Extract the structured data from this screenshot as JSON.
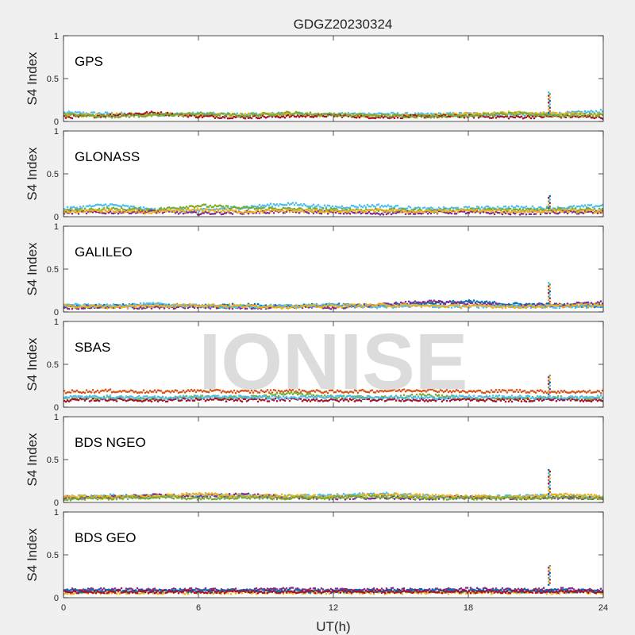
{
  "figure": {
    "title": "GDGZ20230324",
    "watermark": "IONISE"
  },
  "chart_data": {
    "type": "scatter",
    "title": "GDGZ20230324",
    "xlabel": "UT(h)",
    "ylabel": "S4 Index",
    "xlim": [
      0,
      24
    ],
    "ylim": [
      0,
      1
    ],
    "xticks": [
      "0",
      "6",
      "12",
      "18",
      "24"
    ],
    "yticks": [
      "0",
      "0.5",
      "1"
    ],
    "grid": false,
    "colors": [
      "#0072BD",
      "#D95319",
      "#EDB120",
      "#7E2F8E",
      "#77AC30",
      "#4DBEEE",
      "#A2142F"
    ],
    "panels": [
      {
        "name": "GPS",
        "series": [
          {
            "color": "#4DBEEE",
            "x": [
              0,
              2,
              4,
              6,
              8,
              10,
              12,
              14,
              16,
              18,
              20,
              22,
              24
            ],
            "y": [
              0.1,
              0.09,
              0.08,
              0.09,
              0.08,
              0.09,
              0.08,
              0.09,
              0.08,
              0.09,
              0.08,
              0.09,
              0.12
            ]
          },
          {
            "color": "#EDB120",
            "x": [
              0,
              2,
              4,
              6,
              8,
              10,
              12,
              14,
              16,
              18,
              20,
              22,
              24
            ],
            "y": [
              0.07,
              0.08,
              0.09,
              0.07,
              0.08,
              0.08,
              0.07,
              0.06,
              0.07,
              0.08,
              0.1,
              0.09,
              0.08
            ]
          },
          {
            "color": "#A2142F",
            "x": [
              0,
              2,
              4,
              6,
              8,
              10,
              12,
              14,
              16,
              18,
              20,
              22,
              24
            ],
            "y": [
              0.05,
              0.07,
              0.1,
              0.06,
              0.05,
              0.06,
              0.07,
              0.05,
              0.06,
              0.06,
              0.05,
              0.06,
              0.05
            ]
          },
          {
            "color": "#77AC30",
            "x": [
              0,
              2,
              4,
              6,
              8,
              10,
              12,
              14,
              16,
              18,
              20,
              22,
              24
            ],
            "y": [
              0.08,
              0.06,
              0.07,
              0.09,
              0.07,
              0.1,
              0.08,
              0.07,
              0.06,
              0.07,
              0.09,
              0.07,
              0.08
            ]
          }
        ],
        "spike": {
          "x": 21.6,
          "y": [
            0.1,
            0.35
          ]
        }
      },
      {
        "name": "GLONASS",
        "series": [
          {
            "color": "#4DBEEE",
            "x": [
              0,
              2,
              4,
              6,
              8,
              10,
              12,
              14,
              16,
              18,
              20,
              22,
              24
            ],
            "y": [
              0.09,
              0.14,
              0.08,
              0.07,
              0.11,
              0.15,
              0.11,
              0.13,
              0.09,
              0.1,
              0.11,
              0.1,
              0.13
            ]
          },
          {
            "color": "#77AC30",
            "x": [
              0,
              2,
              4,
              6,
              8,
              10,
              12,
              14,
              16,
              18,
              20,
              22,
              24
            ],
            "y": [
              0.07,
              0.09,
              0.08,
              0.13,
              0.1,
              0.09,
              0.08,
              0.08,
              0.07,
              0.08,
              0.08,
              0.09,
              0.08
            ]
          },
          {
            "color": "#7E2F8E",
            "x": [
              0,
              2,
              4,
              6,
              8,
              10,
              12,
              14,
              16,
              18,
              20,
              22,
              24
            ],
            "y": [
              0.05,
              0.05,
              0.06,
              0.04,
              0.05,
              0.06,
              0.05,
              0.04,
              0.05,
              0.05,
              0.04,
              0.05,
              0.05
            ]
          },
          {
            "color": "#EDB120",
            "x": [
              0,
              2,
              4,
              6,
              8,
              10,
              12,
              14,
              16,
              18,
              20,
              22,
              24
            ],
            "y": [
              0.06,
              0.07,
              0.05,
              0.08,
              0.06,
              0.07,
              0.06,
              0.07,
              0.06,
              0.07,
              0.06,
              0.07,
              0.06
            ]
          }
        ],
        "spike": {
          "x": 21.6,
          "y": [
            0.1,
            0.25
          ]
        }
      },
      {
        "name": "GALILEO",
        "series": [
          {
            "color": "#0072BD",
            "x": [
              0,
              2,
              4,
              6,
              8,
              10,
              12,
              14,
              16,
              18,
              20,
              22,
              24
            ],
            "y": [
              0.06,
              0.07,
              0.08,
              0.07,
              0.08,
              0.07,
              0.08,
              0.07,
              0.1,
              0.12,
              0.09,
              0.08,
              0.07
            ]
          },
          {
            "color": "#7E2F8E",
            "x": [
              0,
              2,
              4,
              6,
              8,
              10,
              12,
              14,
              16,
              18,
              20,
              22,
              24
            ],
            "y": [
              0.05,
              0.06,
              0.05,
              0.06,
              0.05,
              0.06,
              0.05,
              0.08,
              0.12,
              0.1,
              0.07,
              0.08,
              0.11
            ]
          },
          {
            "color": "#4DBEEE",
            "x": [
              0,
              2,
              4,
              6,
              8,
              10,
              12,
              14,
              16,
              18,
              20,
              22,
              24
            ],
            "y": [
              0.08,
              0.07,
              0.09,
              0.07,
              0.06,
              0.07,
              0.08,
              0.06,
              0.07,
              0.06,
              0.07,
              0.06,
              0.07
            ]
          },
          {
            "color": "#EDB120",
            "x": [
              0,
              2,
              4,
              6,
              8,
              10,
              12,
              14,
              16,
              18,
              20,
              22,
              24
            ],
            "y": [
              0.07,
              0.06,
              0.07,
              0.08,
              0.07,
              0.06,
              0.07,
              0.08,
              0.07,
              0.07,
              0.06,
              0.07,
              0.08
            ]
          }
        ],
        "spike": {
          "x": 21.6,
          "y": [
            0.1,
            0.35
          ]
        }
      },
      {
        "name": "SBAS",
        "series": [
          {
            "color": "#D95319",
            "x": [
              0,
              2,
              4,
              6,
              8,
              10,
              12,
              14,
              16,
              18,
              20,
              22,
              24
            ],
            "y": [
              0.18,
              0.19,
              0.18,
              0.19,
              0.18,
              0.19,
              0.18,
              0.19,
              0.2,
              0.18,
              0.19,
              0.18,
              0.18
            ]
          },
          {
            "color": "#77AC30",
            "x": [
              0,
              2,
              4,
              6,
              8,
              10,
              12,
              14,
              16,
              18,
              20,
              22,
              24
            ],
            "y": [
              0.1,
              0.11,
              0.1,
              0.12,
              0.11,
              0.16,
              0.12,
              0.11,
              0.14,
              0.11,
              0.1,
              0.11,
              0.1
            ]
          },
          {
            "color": "#A2142F",
            "x": [
              0,
              2,
              4,
              6,
              8,
              10,
              12,
              14,
              16,
              18,
              20,
              22,
              24
            ],
            "y": [
              0.08,
              0.09,
              0.08,
              0.09,
              0.08,
              0.09,
              0.08,
              0.09,
              0.08,
              0.09,
              0.08,
              0.09,
              0.08
            ]
          },
          {
            "color": "#4DBEEE",
            "x": [
              0,
              2,
              4,
              6,
              8,
              10,
              12,
              14,
              16,
              18,
              20,
              22,
              24
            ],
            "y": [
              0.12,
              0.12,
              0.11,
              0.12,
              0.12,
              0.11,
              0.12,
              0.12,
              0.11,
              0.12,
              0.12,
              0.11,
              0.12
            ]
          }
        ],
        "spike": {
          "x": 21.6,
          "y": [
            0.15,
            0.38
          ]
        }
      },
      {
        "name": "BDS NGEO",
        "series": [
          {
            "color": "#4DBEEE",
            "x": [
              0,
              2,
              4,
              6,
              8,
              10,
              12,
              14,
              16,
              18,
              20,
              22,
              24
            ],
            "y": [
              0.06,
              0.08,
              0.07,
              0.09,
              0.08,
              0.07,
              0.08,
              0.1,
              0.08,
              0.06,
              0.07,
              0.08,
              0.06
            ]
          },
          {
            "color": "#7E2F8E",
            "x": [
              0,
              2,
              4,
              6,
              8,
              10,
              12,
              14,
              16,
              18,
              20,
              22,
              24
            ],
            "y": [
              0.05,
              0.06,
              0.08,
              0.07,
              0.09,
              0.06,
              0.05,
              0.06,
              0.05,
              0.06,
              0.05,
              0.06,
              0.05
            ]
          },
          {
            "color": "#EDB120",
            "x": [
              0,
              2,
              4,
              6,
              8,
              10,
              12,
              14,
              16,
              18,
              20,
              22,
              24
            ],
            "y": [
              0.07,
              0.06,
              0.07,
              0.1,
              0.07,
              0.08,
              0.07,
              0.09,
              0.08,
              0.07,
              0.06,
              0.09,
              0.07
            ]
          },
          {
            "color": "#77AC30",
            "x": [
              0,
              2,
              4,
              6,
              8,
              10,
              12,
              14,
              16,
              18,
              20,
              22,
              24
            ],
            "y": [
              0.04,
              0.05,
              0.06,
              0.05,
              0.06,
              0.05,
              0.06,
              0.07,
              0.05,
              0.05,
              0.05,
              0.06,
              0.05
            ]
          }
        ],
        "spike": {
          "x": 21.6,
          "y": [
            0.1,
            0.4
          ]
        }
      },
      {
        "name": "BDS GEO",
        "series": [
          {
            "color": "#7E2F8E",
            "x": [
              0,
              2,
              4,
              6,
              8,
              10,
              12,
              14,
              16,
              18,
              20,
              22,
              24
            ],
            "y": [
              0.09,
              0.1,
              0.09,
              0.1,
              0.09,
              0.1,
              0.09,
              0.1,
              0.09,
              0.1,
              0.09,
              0.1,
              0.09
            ]
          },
          {
            "color": "#EDB120",
            "x": [
              0,
              2,
              4,
              6,
              8,
              10,
              12,
              14,
              16,
              18,
              20,
              22,
              24
            ],
            "y": [
              0.06,
              0.06,
              0.06,
              0.06,
              0.06,
              0.06,
              0.06,
              0.06,
              0.06,
              0.06,
              0.06,
              0.06,
              0.06
            ]
          },
          {
            "color": "#0072BD",
            "x": [
              0,
              2,
              4,
              6,
              8,
              10,
              12,
              14,
              16,
              18,
              20,
              22,
              24
            ],
            "y": [
              0.08,
              0.08,
              0.08,
              0.08,
              0.08,
              0.08,
              0.07,
              0.08,
              0.08,
              0.08,
              0.08,
              0.08,
              0.08
            ]
          },
          {
            "color": "#A2142F",
            "x": [
              0,
              2,
              4,
              6,
              8,
              10,
              12,
              14,
              16,
              18,
              20,
              22,
              24
            ],
            "y": [
              0.07,
              0.07,
              0.07,
              0.07,
              0.07,
              0.07,
              0.07,
              0.07,
              0.07,
              0.07,
              0.07,
              0.07,
              0.07
            ]
          }
        ],
        "spike": {
          "x": 21.6,
          "y": [
            0.15,
            0.38
          ]
        }
      }
    ]
  }
}
